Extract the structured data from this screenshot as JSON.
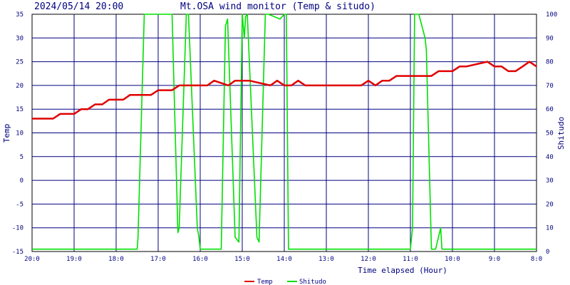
{
  "chart_data": {
    "type": "line",
    "title": "Mt.OSA wind monitor (Temp & situdo)",
    "timestamp": "2024/05/14 20:00",
    "xlabel": "Time elapsed (Hour)",
    "ylabel_left": "Temp",
    "ylabel_right": "Shitudo",
    "x_ticks": [
      "20:0",
      "19:0",
      "18:0",
      "17:0",
      "16:0",
      "15:0",
      "14:0",
      "13:0",
      "12:0",
      "11:0",
      "10:0",
      "9:0",
      "8:0"
    ],
    "x_tick_values": [
      0,
      1,
      2,
      3,
      4,
      5,
      6,
      7,
      8,
      9,
      10,
      11,
      12
    ],
    "xlim": [
      0,
      12
    ],
    "ylim_left": [
      -15,
      35
    ],
    "ylim_right": [
      0,
      100
    ],
    "y_ticks_left": [
      -15,
      -10,
      -5,
      0,
      5,
      10,
      15,
      20,
      25,
      30,
      35
    ],
    "y_ticks_right": [
      0,
      10,
      20,
      30,
      40,
      50,
      60,
      70,
      80,
      90,
      100
    ],
    "grid": true,
    "legend_position": "bottom-center",
    "series": [
      {
        "name": "Temp",
        "color": "#e00000",
        "axis": "left",
        "x": [
          0,
          0.5,
          0.67,
          1.0,
          1.17,
          1.33,
          1.5,
          1.67,
          1.83,
          2.17,
          2.33,
          2.83,
          3.0,
          3.33,
          3.5,
          4.17,
          4.33,
          4.67,
          4.83,
          5.0,
          5.17,
          5.67,
          5.83,
          6.0,
          6.17,
          6.33,
          6.5,
          6.67,
          6.83,
          7.83,
          8.0,
          8.17,
          8.33,
          8.5,
          8.67,
          9.0,
          9.17,
          9.5,
          9.67,
          10.0,
          10.17,
          10.33,
          10.83,
          11.0,
          11.17,
          11.33,
          11.5,
          11.67,
          11.83,
          12.0
        ],
        "y": [
          13,
          13,
          14,
          14,
          15,
          15,
          16,
          16,
          17,
          17,
          18,
          18,
          19,
          19,
          20,
          20,
          21,
          20,
          21,
          21,
          21,
          20,
          21,
          20,
          20,
          21,
          20,
          20,
          20,
          20,
          21,
          20,
          21,
          21,
          22,
          22,
          22,
          22,
          23,
          23,
          24,
          24,
          25,
          24,
          24,
          23,
          23,
          24,
          25,
          24
        ]
      },
      {
        "name": "Shitudo",
        "color": "#00e000",
        "axis": "right",
        "x": [
          0,
          2.5,
          2.52,
          2.67,
          3.33,
          3.47,
          3.5,
          3.67,
          3.72,
          3.93,
          3.97,
          4.0,
          4.5,
          4.6,
          4.65,
          4.83,
          4.92,
          5.0,
          5.05,
          5.08,
          5.12,
          5.35,
          5.4,
          5.55,
          5.62,
          5.9,
          6.0,
          6.05,
          6.1,
          9.0,
          9.05,
          9.1,
          9.2,
          9.35,
          9.38,
          9.5,
          9.55,
          9.6,
          9.72,
          9.75,
          12.0
        ],
        "y": [
          1,
          1,
          6,
          100,
          100,
          8,
          10,
          100,
          100,
          10,
          6,
          1,
          1,
          95,
          98,
          6,
          4,
          100,
          90,
          99,
          100,
          6,
          4,
          100,
          100,
          98,
          100,
          100,
          1,
          1,
          10,
          100,
          100,
          90,
          85,
          1,
          1,
          1,
          10,
          1,
          1
        ]
      }
    ]
  }
}
